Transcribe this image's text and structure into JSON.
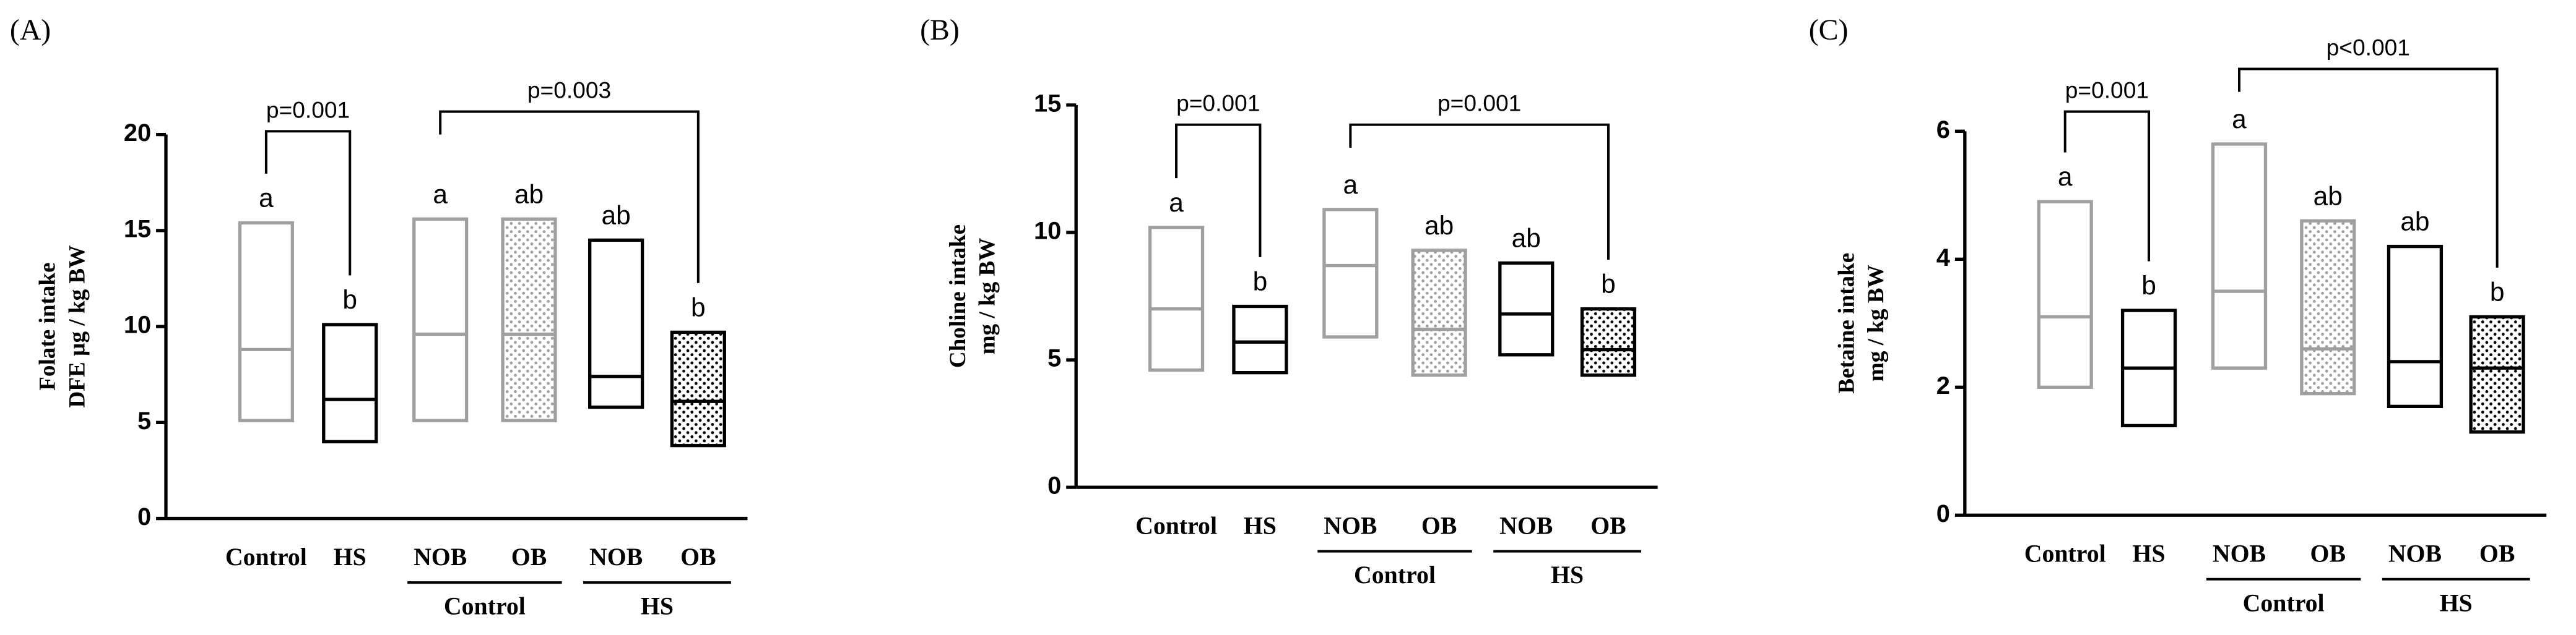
{
  "chart_data": [
    {
      "type": "floating_bar",
      "panel": "(A)",
      "ylabel": [
        "Folate intake",
        "DFE µg / kg BW"
      ],
      "categories": [
        "Control",
        "HS",
        "NOB",
        "OB",
        "NOB",
        "OB"
      ],
      "max": [
        15.4,
        10.1,
        15.6,
        15.6,
        14.5,
        9.7
      ],
      "min": [
        5.1,
        4.0,
        5.1,
        5.1,
        5.8,
        3.8
      ],
      "median": [
        8.8,
        6.2,
        9.6,
        9.6,
        7.4,
        6.1
      ],
      "letters": [
        "a",
        "b",
        "a",
        "ab",
        "ab",
        "b"
      ],
      "colors": [
        "#a0a0a0",
        "#000000",
        "#a0a0a0",
        "#a0a0a0",
        "#000000",
        "#000000"
      ],
      "fills": [
        "none",
        "none",
        "none",
        "dots",
        "none",
        "dots"
      ],
      "groups": [
        {
          "label": "Control",
          "from": 2,
          "to": 3
        },
        {
          "label": "HS",
          "from": 4,
          "to": 5
        }
      ],
      "brackets": [
        {
          "from": 0,
          "to": 1,
          "label": "p=0.001"
        },
        {
          "from": 2,
          "to": 5,
          "label": "p=0.003"
        }
      ],
      "ylim": [
        0,
        20
      ],
      "yticks": [
        0,
        5,
        10,
        15,
        20
      ]
    },
    {
      "type": "floating_bar",
      "panel": "(B)",
      "ylabel": [
        "Choline intake",
        "mg / kg BW"
      ],
      "categories": [
        "Control",
        "HS",
        "NOB",
        "OB",
        "NOB",
        "OB"
      ],
      "max": [
        10.2,
        7.1,
        10.9,
        9.3,
        8.8,
        7.0
      ],
      "min": [
        4.6,
        4.5,
        5.9,
        4.4,
        5.2,
        4.4
      ],
      "median": [
        7.0,
        5.7,
        8.7,
        6.2,
        6.8,
        5.4
      ],
      "letters": [
        "a",
        "b",
        "a",
        "ab",
        "ab",
        "b"
      ],
      "colors": [
        "#a0a0a0",
        "#000000",
        "#a0a0a0",
        "#a0a0a0",
        "#000000",
        "#000000"
      ],
      "fills": [
        "none",
        "none",
        "none",
        "dots",
        "none",
        "dots"
      ],
      "groups": [
        {
          "label": "Control",
          "from": 2,
          "to": 3
        },
        {
          "label": "HS",
          "from": 4,
          "to": 5
        }
      ],
      "brackets": [
        {
          "from": 0,
          "to": 1,
          "label": "p=0.001"
        },
        {
          "from": 2,
          "to": 5,
          "label": "p=0.001"
        }
      ],
      "ylim": [
        0,
        15
      ],
      "yticks": [
        0,
        5,
        10,
        15
      ]
    },
    {
      "type": "floating_bar",
      "panel": "(C)",
      "ylabel": [
        "Betaine intake",
        "mg / kg BW"
      ],
      "categories": [
        "Control",
        "HS",
        "NOB",
        "OB",
        "NOB",
        "OB"
      ],
      "max": [
        4.9,
        3.2,
        5.8,
        4.6,
        4.2,
        3.1
      ],
      "min": [
        2.0,
        1.4,
        2.3,
        1.9,
        1.7,
        1.3
      ],
      "median": [
        3.1,
        2.3,
        3.5,
        2.6,
        2.4,
        2.3
      ],
      "letters": [
        "a",
        "b",
        "a",
        "ab",
        "ab",
        "b"
      ],
      "colors": [
        "#a0a0a0",
        "#000000",
        "#a0a0a0",
        "#a0a0a0",
        "#000000",
        "#000000"
      ],
      "fills": [
        "none",
        "none",
        "none",
        "dots",
        "none",
        "dots"
      ],
      "groups": [
        {
          "label": "Control",
          "from": 2,
          "to": 3
        },
        {
          "label": "HS",
          "from": 4,
          "to": 5
        }
      ],
      "brackets": [
        {
          "from": 0,
          "to": 1,
          "label": "p=0.001"
        },
        {
          "from": 2,
          "to": 5,
          "label": "p<0.001"
        }
      ],
      "ylim": [
        0,
        6
      ],
      "yticks": [
        0,
        2,
        4,
        6
      ]
    }
  ]
}
